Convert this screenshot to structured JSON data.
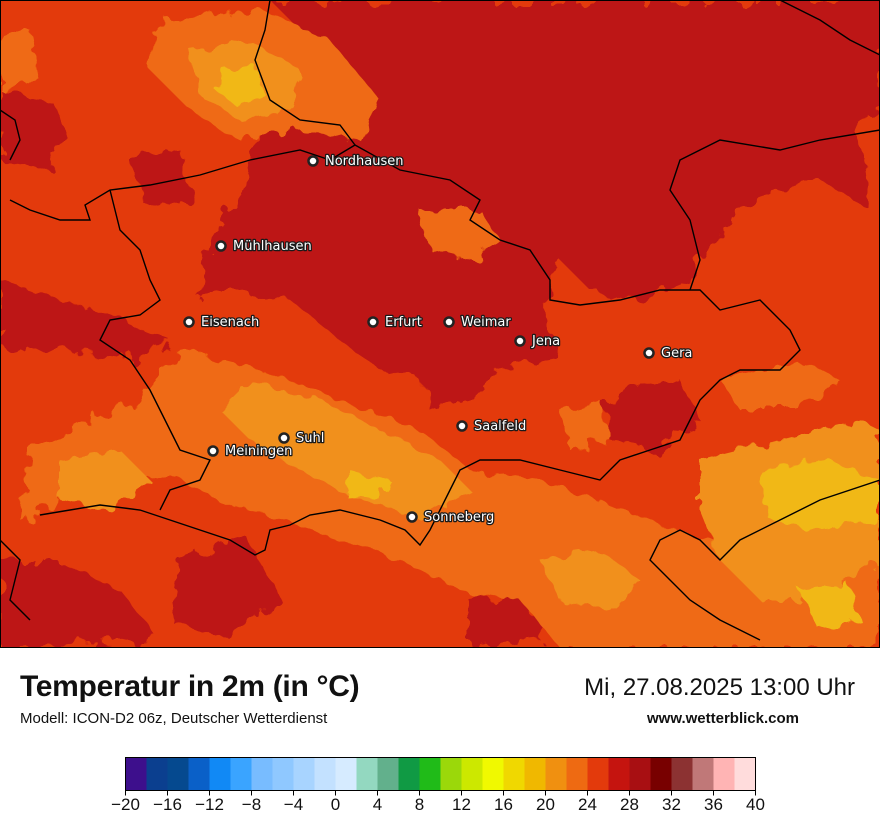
{
  "title": "Temperatur in 2m (in °C)",
  "model": "Modell: ICON-D2 06z, Deutscher Wetterdienst",
  "datetime": "Mi, 27.08.2025 13:00 Uhr",
  "website": "www.wetterblick.com",
  "cities": [
    {
      "name": "Nordhausen",
      "label_side": "right"
    },
    {
      "name": "Mühlhausen",
      "label_side": "right"
    },
    {
      "name": "Eisenach",
      "label_side": "right"
    },
    {
      "name": "Erfurt",
      "label_side": "right"
    },
    {
      "name": "Weimar",
      "label_side": "right"
    },
    {
      "name": "Jena",
      "label_side": "right"
    },
    {
      "name": "Gera",
      "label_side": "right"
    },
    {
      "name": "Suhl",
      "label_side": "right"
    },
    {
      "name": "Meiningen",
      "label_side": "right"
    },
    {
      "name": "Saalfeld",
      "label_side": "right"
    },
    {
      "name": "Sonneberg",
      "label_side": "right"
    }
  ],
  "legend": {
    "range": [
      -20,
      40
    ],
    "step": 2,
    "tick_labels": [
      "−20",
      "−16",
      "−12",
      "−8",
      "−4",
      "0",
      "4",
      "8",
      "12",
      "16",
      "20",
      "24",
      "28",
      "32",
      "36",
      "40"
    ],
    "colors": [
      "#3d0f8c",
      "#0b3f8f",
      "#05498f",
      "#0a60c8",
      "#1189f5",
      "#3aa4ff",
      "#78bcff",
      "#8fc8ff",
      "#a8d4ff",
      "#c3e1ff",
      "#d6ebff",
      "#93d8c0",
      "#62b08c",
      "#109a44",
      "#20bb18",
      "#9bd80a",
      "#cce800",
      "#f0f900",
      "#f0d800",
      "#f0b800",
      "#f09010",
      "#ee6a12",
      "#e33a0c",
      "#c5140f",
      "#a80f12",
      "#780000",
      "#8c3232",
      "#c07878",
      "#ffb4b4",
      "#ffdcdc"
    ]
  },
  "map_colors": {
    "t24_26": "#e33a0c",
    "t26_28": "#bd1414",
    "t22_24": "#ef6a12",
    "t20_22": "#f1901a",
    "t18_20": "#f1b815",
    "border": "#000000",
    "city_dot_fill": "#ffffff",
    "city_dot_stroke": "#222222"
  }
}
